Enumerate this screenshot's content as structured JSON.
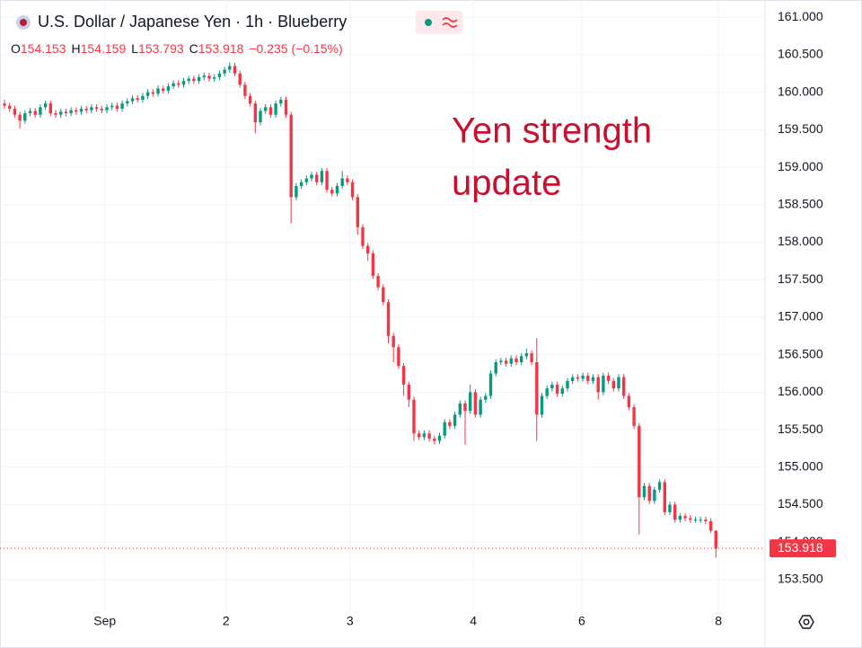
{
  "chart_data": {
    "type": "candlestick",
    "title": "U.S. Dollar / Japanese Yen · 1h · Blueberry",
    "ohlc_labels": [
      "O",
      "H",
      "L",
      "C"
    ],
    "change_label": "−0.235 (−0.15%)",
    "annotation": [
      "Yen strength",
      "update"
    ],
    "up_color": "#089981",
    "down_color": "#f23645",
    "annotation_color": "#c8102e",
    "grid": true,
    "xlim": [
      -0.88,
      148.6
    ],
    "xticks": [
      {
        "value": 19.6,
        "label": "Sep"
      },
      {
        "value": 43.3,
        "label": "2"
      },
      {
        "value": 67.5,
        "label": "3"
      },
      {
        "value": 91.6,
        "label": "4"
      },
      {
        "value": 112.8,
        "label": "6"
      },
      {
        "value": 139.5,
        "label": "8"
      }
    ],
    "ylim": [
      153.08,
      161.23
    ],
    "yticks": [
      {
        "value": 153.5,
        "label": "153.500"
      },
      {
        "value": 154,
        "label": "154.000"
      },
      {
        "value": 154.5,
        "label": "154.500"
      },
      {
        "value": 155,
        "label": "155.000"
      },
      {
        "value": 155.5,
        "label": "155.500"
      },
      {
        "value": 156,
        "label": "156.000"
      },
      {
        "value": 156.5,
        "label": "156.500"
      },
      {
        "value": 157,
        "label": "157.000"
      },
      {
        "value": 157.5,
        "label": "157.500"
      },
      {
        "value": 158,
        "label": "158.000"
      },
      {
        "value": 158.5,
        "label": "158.500"
      },
      {
        "value": 159,
        "label": "159.000"
      },
      {
        "value": 159.5,
        "label": "159.500"
      },
      {
        "value": 160,
        "label": "160.000"
      },
      {
        "value": 160.5,
        "label": "160.500"
      },
      {
        "value": 161,
        "label": "161.000"
      }
    ],
    "open": [
      159.85,
      159.82,
      159.78,
      159.7,
      159.62,
      159.72,
      159.75,
      159.7,
      159.8,
      159.85,
      159.72,
      159.7,
      159.74,
      159.72,
      159.76,
      159.74,
      159.78,
      159.76,
      159.8,
      159.78,
      159.76,
      159.8,
      159.82,
      159.78,
      159.85,
      159.88,
      159.92,
      159.9,
      159.95,
      160.0,
      159.98,
      160.05,
      160.02,
      160.08,
      160.12,
      160.1,
      160.15,
      160.18,
      160.15,
      160.2,
      160.22,
      160.18,
      160.2,
      160.25,
      160.3,
      160.35,
      160.25,
      160.1,
      159.95,
      159.85,
      159.6,
      159.75,
      159.8,
      159.7,
      159.85,
      159.9,
      159.7,
      158.6,
      158.75,
      158.8,
      158.85,
      158.9,
      158.8,
      158.95,
      158.7,
      158.65,
      158.75,
      158.85,
      158.8,
      158.6,
      158.2,
      157.95,
      157.85,
      157.55,
      157.4,
      157.2,
      156.75,
      156.6,
      156.35,
      156.1,
      155.9,
      155.45,
      155.4,
      155.45,
      155.38,
      155.35,
      155.42,
      155.6,
      155.55,
      155.7,
      155.85,
      155.75,
      156.0,
      155.7,
      155.9,
      155.95,
      156.25,
      156.4,
      156.42,
      156.38,
      156.45,
      156.4,
      156.48,
      156.52,
      156.4,
      155.7,
      155.95,
      156.05,
      156.1,
      155.98,
      156.05,
      156.15,
      156.2,
      156.18,
      156.22,
      156.15,
      156.2,
      156.0,
      156.22,
      156.15,
      156.05,
      156.2,
      155.95,
      155.8,
      155.55,
      154.6,
      154.75,
      154.55,
      154.7,
      154.8,
      154.4,
      154.5,
      154.3,
      154.35,
      154.32,
      154.3,
      154.3,
      154.3,
      154.28,
      154.153
    ],
    "high": [
      159.9,
      159.86,
      159.82,
      159.74,
      159.76,
      159.79,
      159.79,
      159.84,
      159.89,
      159.89,
      159.76,
      159.78,
      159.78,
      159.8,
      159.8,
      159.82,
      159.82,
      159.84,
      159.84,
      159.82,
      159.84,
      159.86,
      159.86,
      159.89,
      159.92,
      159.96,
      159.96,
      159.99,
      160.04,
      160.04,
      160.09,
      160.09,
      160.12,
      160.16,
      160.16,
      160.19,
      160.22,
      160.22,
      160.24,
      160.26,
      160.26,
      160.24,
      160.29,
      160.34,
      160.4,
      160.39,
      160.29,
      160.14,
      159.99,
      159.89,
      159.79,
      159.84,
      159.84,
      159.89,
      159.94,
      159.94,
      159.74,
      158.79,
      158.84,
      158.89,
      158.94,
      158.94,
      158.99,
      158.99,
      158.74,
      158.79,
      158.95,
      158.89,
      158.84,
      158.64,
      158.24,
      157.99,
      157.89,
      157.59,
      157.44,
      157.24,
      156.79,
      156.64,
      156.39,
      156.14,
      155.94,
      155.49,
      155.49,
      155.49,
      155.42,
      155.46,
      155.64,
      155.64,
      155.74,
      155.89,
      155.89,
      156.1,
      156.04,
      155.94,
      155.99,
      156.29,
      156.44,
      156.46,
      156.46,
      156.49,
      156.49,
      156.52,
      156.58,
      156.56,
      156.72,
      155.99,
      156.09,
      156.14,
      156.14,
      156.09,
      156.19,
      156.24,
      156.24,
      156.26,
      156.26,
      156.24,
      156.24,
      156.26,
      156.26,
      156.19,
      156.24,
      156.24,
      155.99,
      155.84,
      155.59,
      154.79,
      154.79,
      154.74,
      154.84,
      154.84,
      154.54,
      154.54,
      154.39,
      154.39,
      154.36,
      154.34,
      154.34,
      154.34,
      154.32,
      154.159
    ],
    "low": [
      159.78,
      159.74,
      159.66,
      159.52,
      159.58,
      159.68,
      159.66,
      159.66,
      159.76,
      159.68,
      159.66,
      159.66,
      159.68,
      159.68,
      159.7,
      159.7,
      159.72,
      159.72,
      159.74,
      159.72,
      159.72,
      159.76,
      159.74,
      159.74,
      159.81,
      159.84,
      159.86,
      159.86,
      159.91,
      159.94,
      159.94,
      159.98,
      159.98,
      160.04,
      160.06,
      160.06,
      160.11,
      160.11,
      160.11,
      160.16,
      160.14,
      160.14,
      160.16,
      160.21,
      160.26,
      160.21,
      160.06,
      159.91,
      159.81,
      159.45,
      159.56,
      159.71,
      159.66,
      159.66,
      159.81,
      159.66,
      158.25,
      158.56,
      158.71,
      158.76,
      158.81,
      158.76,
      158.76,
      158.66,
      158.61,
      158.61,
      158.71,
      158.76,
      158.56,
      158.1,
      157.91,
      157.75,
      157.51,
      157.36,
      157.16,
      156.65,
      156.4,
      156.31,
      155.95,
      155.8,
      155.35,
      155.36,
      155.36,
      155.34,
      155.3,
      155.31,
      155.38,
      155.51,
      155.51,
      155.66,
      155.3,
      155.71,
      155.66,
      155.66,
      155.86,
      155.91,
      156.21,
      156.36,
      156.34,
      156.34,
      156.36,
      156.36,
      156.44,
      156.36,
      155.35,
      155.66,
      155.91,
      156.01,
      155.94,
      155.94,
      156.01,
      156.11,
      156.14,
      156.14,
      156.11,
      156.11,
      155.9,
      155.96,
      156.11,
      156.01,
      156.01,
      155.91,
      155.76,
      155.51,
      154.1,
      154.56,
      154.51,
      154.51,
      154.66,
      154.36,
      154.36,
      154.26,
      154.26,
      154.28,
      154.26,
      154.26,
      154.26,
      154.24,
      154.12,
      153.793
    ],
    "close": [
      159.82,
      159.78,
      159.7,
      159.62,
      159.72,
      159.75,
      159.7,
      159.8,
      159.85,
      159.72,
      159.7,
      159.74,
      159.72,
      159.76,
      159.74,
      159.78,
      159.76,
      159.8,
      159.78,
      159.76,
      159.8,
      159.82,
      159.78,
      159.85,
      159.88,
      159.92,
      159.9,
      159.95,
      160.0,
      159.98,
      160.05,
      160.02,
      160.08,
      160.12,
      160.1,
      160.15,
      160.18,
      160.15,
      160.2,
      160.22,
      160.18,
      160.2,
      160.25,
      160.3,
      160.35,
      160.25,
      160.1,
      159.95,
      159.85,
      159.6,
      159.75,
      159.8,
      159.7,
      159.85,
      159.9,
      159.7,
      158.6,
      158.75,
      158.8,
      158.85,
      158.9,
      158.8,
      158.95,
      158.7,
      158.65,
      158.75,
      158.85,
      158.8,
      158.6,
      158.2,
      157.95,
      157.85,
      157.55,
      157.4,
      157.2,
      156.75,
      156.6,
      156.35,
      156.1,
      155.9,
      155.45,
      155.4,
      155.45,
      155.38,
      155.35,
      155.42,
      155.6,
      155.55,
      155.7,
      155.85,
      155.75,
      156.0,
      155.7,
      155.9,
      155.95,
      156.25,
      156.4,
      156.42,
      156.38,
      156.45,
      156.4,
      156.48,
      156.52,
      156.4,
      155.7,
      155.95,
      156.05,
      156.1,
      155.98,
      156.05,
      156.15,
      156.2,
      156.18,
      156.22,
      156.15,
      156.2,
      156.0,
      156.22,
      156.15,
      156.05,
      156.2,
      155.95,
      155.8,
      155.55,
      154.6,
      154.75,
      154.55,
      154.7,
      154.8,
      154.4,
      154.5,
      154.3,
      154.35,
      154.32,
      154.3,
      154.3,
      154.3,
      154.28,
      154.153,
      153.918
    ]
  }
}
